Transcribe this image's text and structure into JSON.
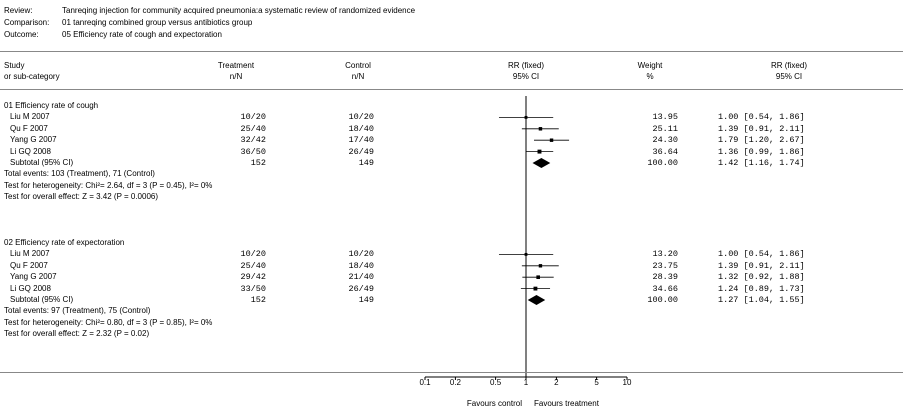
{
  "header": {
    "review_label": "Review:",
    "review_value": "Tanreqing injection for community acquired pneumonia:a systematic review of randomized evidence",
    "comparison_label": "Comparison:",
    "comparison_value": "01 tanreqing combined group versus antibiotics group",
    "outcome_label": "Outcome:",
    "outcome_value": "05 Efficiency rate of cough and expectoration"
  },
  "columns": {
    "study_1": "Study",
    "study_2": "or sub-category",
    "treatment_1": "Treatment",
    "treatment_2": "n/N",
    "control_1": "Control",
    "control_2": "n/N",
    "rr_1": "RR (fixed)",
    "rr_2": "95% CI",
    "weight_1": "Weight",
    "weight_2": "%",
    "rrval_1": "RR (fixed)",
    "rrval_2": "95% CI"
  },
  "groups": [
    {
      "title": "01 Efficiency rate of cough",
      "studies": [
        {
          "name": "Liu M 2007",
          "treatment": "10/20",
          "control": "10/20",
          "weight": "13.95",
          "ci_text": "1.00 [0.54, 1.86]",
          "rr": 1.0,
          "lo": 0.54,
          "hi": 1.86,
          "w": 13.95
        },
        {
          "name": "Qu F 2007",
          "treatment": "25/40",
          "control": "18/40",
          "weight": "25.11",
          "ci_text": "1.39 [0.91, 2.11]",
          "rr": 1.39,
          "lo": 0.91,
          "hi": 2.11,
          "w": 25.11
        },
        {
          "name": "Yang G 2007",
          "treatment": "32/42",
          "control": "17/40",
          "weight": "24.30",
          "ci_text": "1.79 [1.20, 2.67]",
          "rr": 1.79,
          "lo": 1.2,
          "hi": 2.67,
          "w": 24.3
        },
        {
          "name": "Li GQ 2008",
          "treatment": "36/50",
          "control": "26/49",
          "weight": "36.64",
          "ci_text": "1.36 [0.99, 1.86]",
          "rr": 1.36,
          "lo": 0.99,
          "hi": 1.86,
          "w": 36.64
        }
      ],
      "subtotal": {
        "name": "Subtotal (95% CI)",
        "treatment": "152",
        "control": "149",
        "weight": "100.00",
        "ci_text": "1.42 [1.16, 1.74]",
        "rr": 1.42,
        "lo": 1.16,
        "hi": 1.74
      },
      "total_events": "Total events: 103 (Treatment), 71 (Control)",
      "heterogeneity": "Test for heterogeneity: Chi²= 2.64, df = 3 (P = 0.45), I²= 0%",
      "overall": "Test for overall effect: Z = 3.42 (P = 0.0006)"
    },
    {
      "title": "02 Efficiency rate of expectoration",
      "studies": [
        {
          "name": "Liu M 2007",
          "treatment": "10/20",
          "control": "10/20",
          "weight": "13.20",
          "ci_text": "1.00 [0.54, 1.86]",
          "rr": 1.0,
          "lo": 0.54,
          "hi": 1.86,
          "w": 13.2
        },
        {
          "name": "Qu F 2007",
          "treatment": "25/40",
          "control": "18/40",
          "weight": "23.75",
          "ci_text": "1.39 [0.91, 2.11]",
          "rr": 1.39,
          "lo": 0.91,
          "hi": 2.11,
          "w": 23.75
        },
        {
          "name": "Yang G 2007",
          "treatment": "29/42",
          "control": "21/40",
          "weight": "28.39",
          "ci_text": "1.32 [0.92, 1.88]",
          "rr": 1.32,
          "lo": 0.92,
          "hi": 1.88,
          "w": 28.39
        },
        {
          "name": "Li GQ 2008",
          "treatment": "33/50",
          "control": "26/49",
          "weight": "34.66",
          "ci_text": "1.24 [0.89, 1.73]",
          "rr": 1.24,
          "lo": 0.89,
          "hi": 1.73,
          "w": 34.66
        }
      ],
      "subtotal": {
        "name": "Subtotal (95% CI)",
        "treatment": "152",
        "control": "149",
        "weight": "100.00",
        "ci_text": "1.27 [1.04, 1.55]",
        "rr": 1.27,
        "lo": 1.04,
        "hi": 1.55
      },
      "total_events": "Total events: 97 (Treatment), 75 (Control)",
      "heterogeneity": "Test for heterogeneity: Chi²= 0.80, df = 3 (P = 0.85), I²= 0%",
      "overall": "Test for overall effect: Z = 2.32 (P = 0.02)"
    }
  ],
  "axis": {
    "ticks": [
      0.1,
      0.2,
      0.5,
      1,
      2,
      5,
      10
    ],
    "tick_labels": [
      "0.1",
      "0.2",
      "0.5",
      "1",
      "2",
      "5",
      "10"
    ],
    "scale": "log",
    "range": [
      0.1,
      10
    ],
    "left_label": "Favours control",
    "right_label": "Favours treatment"
  },
  "chart_data": {
    "type": "forest",
    "scale": "log",
    "xlim": [
      0.1,
      10
    ],
    "reference_line": 1,
    "series": [
      {
        "name": "01 Efficiency rate of cough",
        "rr": [
          1.0,
          1.39,
          1.79,
          1.36
        ],
        "lo": [
          0.54,
          0.91,
          1.2,
          0.99
        ],
        "hi": [
          1.86,
          2.11,
          2.67,
          1.86
        ],
        "pooled": {
          "rr": 1.42,
          "lo": 1.16,
          "hi": 1.74
        }
      },
      {
        "name": "02 Efficiency rate of expectoration",
        "rr": [
          1.0,
          1.39,
          1.32,
          1.24
        ],
        "lo": [
          0.54,
          0.91,
          0.92,
          0.89
        ],
        "hi": [
          1.86,
          2.11,
          1.88,
          1.73
        ],
        "pooled": {
          "rr": 1.27,
          "lo": 1.04,
          "hi": 1.55
        }
      }
    ]
  }
}
